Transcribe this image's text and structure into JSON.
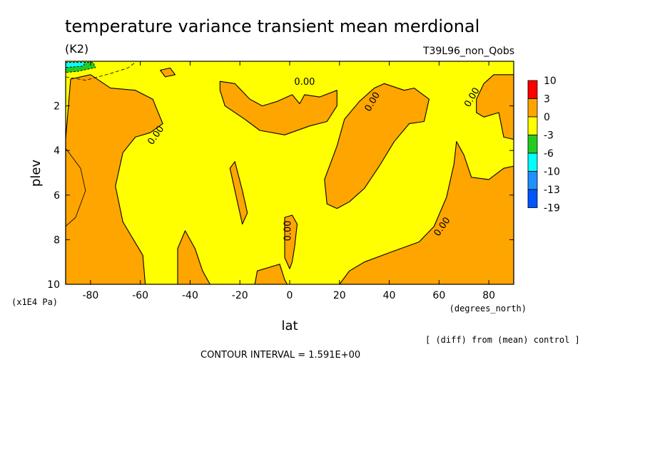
{
  "chart_data": {
    "type": "heatmap",
    "title": "temperature variance transient mean merdional",
    "units": "(K2)",
    "run_label": "T39L96_non_Qobs",
    "xlabel": "lat",
    "x_units": "(degrees_north)",
    "ylabel": "plev",
    "y_units": "(x1E4 Pa)",
    "xlim": [
      -90,
      90
    ],
    "ylim": [
      0,
      10
    ],
    "y_inverted": true,
    "x_ticks": [
      "-80",
      "-60",
      "-40",
      "-20",
      "0",
      "20",
      "40",
      "60",
      "80"
    ],
    "y_ticks": [
      "2",
      "4",
      "6",
      "8",
      "10"
    ],
    "contour_interval_text": "CONTOUR INTERVAL = 1.591E+00",
    "note": "[ (diff) from (mean) control ]",
    "contour_labels": [
      "0.00",
      "0.00",
      "0.00",
      "0.00",
      "0.00",
      "0.00"
    ],
    "colorbar": {
      "levels": [
        "10",
        "3",
        "0",
        "-3",
        "-6",
        "-10",
        "-13",
        "-19"
      ],
      "colors": [
        "#ff0000",
        "#ffa500",
        "#ffff00",
        "#22cc22",
        "#00ffff",
        "#1e90ff",
        "#0055ff"
      ]
    },
    "fill_colors": {
      "positive": "#ffa500",
      "negative": "#ffff00"
    },
    "positive_regions": [
      {
        "name": "southern-flank",
        "points": [
          [
            -90,
            3.5
          ],
          [
            -88,
            0.8
          ],
          [
            -80,
            0.6
          ],
          [
            -72,
            1.2
          ],
          [
            -62,
            1.3
          ],
          [
            -55,
            1.7
          ],
          [
            -51,
            2.8
          ],
          [
            -56,
            3.2
          ],
          [
            -62,
            3.4
          ],
          [
            -67,
            4.1
          ],
          [
            -70,
            5.6
          ],
          [
            -67,
            7.2
          ],
          [
            -59,
            8.7
          ],
          [
            -58,
            10
          ],
          [
            -90,
            10
          ]
        ]
      },
      {
        "name": "upper-midlat-tongue",
        "points": [
          [
            -28,
            0.9
          ],
          [
            -22,
            1.0
          ],
          [
            -16,
            1.7
          ],
          [
            -11,
            2.0
          ],
          [
            -5,
            1.8
          ],
          [
            1,
            1.5
          ],
          [
            4,
            1.9
          ],
          [
            6,
            1.5
          ],
          [
            12,
            1.6
          ],
          [
            19,
            1.3
          ],
          [
            19,
            2.0
          ],
          [
            15,
            2.7
          ],
          [
            8,
            2.9
          ],
          [
            -2,
            3.3
          ],
          [
            -12,
            3.1
          ],
          [
            -18,
            2.6
          ],
          [
            -26,
            2.0
          ],
          [
            -28,
            1.3
          ]
        ]
      },
      {
        "name": "sloping-ridge-north",
        "points": [
          [
            14,
            5.3
          ],
          [
            19,
            3.8
          ],
          [
            22,
            2.6
          ],
          [
            28,
            1.8
          ],
          [
            34,
            1.2
          ],
          [
            38,
            1.0
          ],
          [
            46,
            1.3
          ],
          [
            50,
            1.2
          ],
          [
            56,
            1.7
          ],
          [
            54,
            2.7
          ],
          [
            48,
            2.8
          ],
          [
            42,
            3.6
          ],
          [
            36,
            4.7
          ],
          [
            30,
            5.7
          ],
          [
            24,
            6.3
          ],
          [
            19,
            6.6
          ],
          [
            15,
            6.4
          ]
        ]
      },
      {
        "name": "thin-column",
        "points": [
          [
            -24,
            4.8
          ],
          [
            -22,
            4.5
          ],
          [
            -19,
            5.8
          ],
          [
            -17,
            6.8
          ],
          [
            -19,
            7.3
          ],
          [
            -21,
            6.3
          ]
        ]
      },
      {
        "name": "narrow-column-equator",
        "points": [
          [
            -2,
            7.0
          ],
          [
            1,
            6.9
          ],
          [
            3,
            7.3
          ],
          [
            2,
            8.3
          ],
          [
            1,
            9.0
          ],
          [
            0,
            9.3
          ],
          [
            -2,
            8.8
          ]
        ]
      },
      {
        "name": "south-surface-lobe",
        "points": [
          [
            -45,
            8.4
          ],
          [
            -42,
            7.6
          ],
          [
            -38,
            8.4
          ],
          [
            -35,
            9.4
          ],
          [
            -32,
            10
          ],
          [
            -45,
            10
          ]
        ]
      },
      {
        "name": "subtropical-surface-lobe",
        "points": [
          [
            -13,
            9.4
          ],
          [
            -4,
            9.1
          ],
          [
            -2,
            9.8
          ],
          [
            -1,
            10
          ],
          [
            -14,
            10
          ]
        ]
      },
      {
        "name": "northern-polar-lobe",
        "points": [
          [
            20,
            10
          ],
          [
            24,
            9.4
          ],
          [
            30,
            9.0
          ],
          [
            42,
            8.5
          ],
          [
            52,
            8.1
          ],
          [
            58,
            7.4
          ],
          [
            63,
            6.1
          ],
          [
            66,
            4.6
          ],
          [
            67,
            3.6
          ],
          [
            70,
            4.2
          ],
          [
            73,
            5.2
          ],
          [
            80,
            5.3
          ],
          [
            86,
            4.8
          ],
          [
            90,
            4.7
          ],
          [
            90,
            10
          ]
        ]
      },
      {
        "name": "upper-polar-cap",
        "points": [
          [
            75,
            1.7
          ],
          [
            78,
            1.0
          ],
          [
            82,
            0.6
          ],
          [
            88,
            0.6
          ],
          [
            90,
            0.6
          ],
          [
            90,
            3.5
          ],
          [
            86,
            3.4
          ],
          [
            84,
            2.3
          ],
          [
            78,
            2.5
          ],
          [
            75,
            2.3
          ]
        ]
      },
      {
        "name": "top-small-blob",
        "points": [
          [
            -52,
            0.4
          ],
          [
            -48,
            0.3
          ],
          [
            -46,
            0.6
          ],
          [
            -50,
            0.7
          ]
        ]
      }
    ],
    "negative_regions": [
      {
        "name": "south-pole-top-green",
        "color": "#22cc22",
        "points": [
          [
            -90,
            0.05
          ],
          [
            -79,
            0.05
          ],
          [
            -78,
            0.28
          ],
          [
            -85,
            0.45
          ],
          [
            -90,
            0.5
          ]
        ]
      },
      {
        "name": "south-pole-top-cyan",
        "color": "#00ffff",
        "points": [
          [
            -90,
            0.05
          ],
          [
            -82,
            0.05
          ],
          [
            -83,
            0.22
          ],
          [
            -90,
            0.28
          ]
        ]
      }
    ],
    "thin_contours": [
      {
        "name": "inner-contour-south",
        "points": [
          [
            -90,
            3.9
          ],
          [
            -84,
            4.8
          ],
          [
            -82,
            5.8
          ],
          [
            -86,
            7.0
          ],
          [
            -90,
            7.4
          ]
        ]
      },
      {
        "name": "upper-dashed-contour",
        "dashed": true,
        "points": [
          [
            -90,
            0.7
          ],
          [
            -82,
            0.85
          ],
          [
            -72,
            0.55
          ],
          [
            -65,
            0.3
          ],
          [
            -62,
            0.05
          ]
        ]
      }
    ]
  }
}
